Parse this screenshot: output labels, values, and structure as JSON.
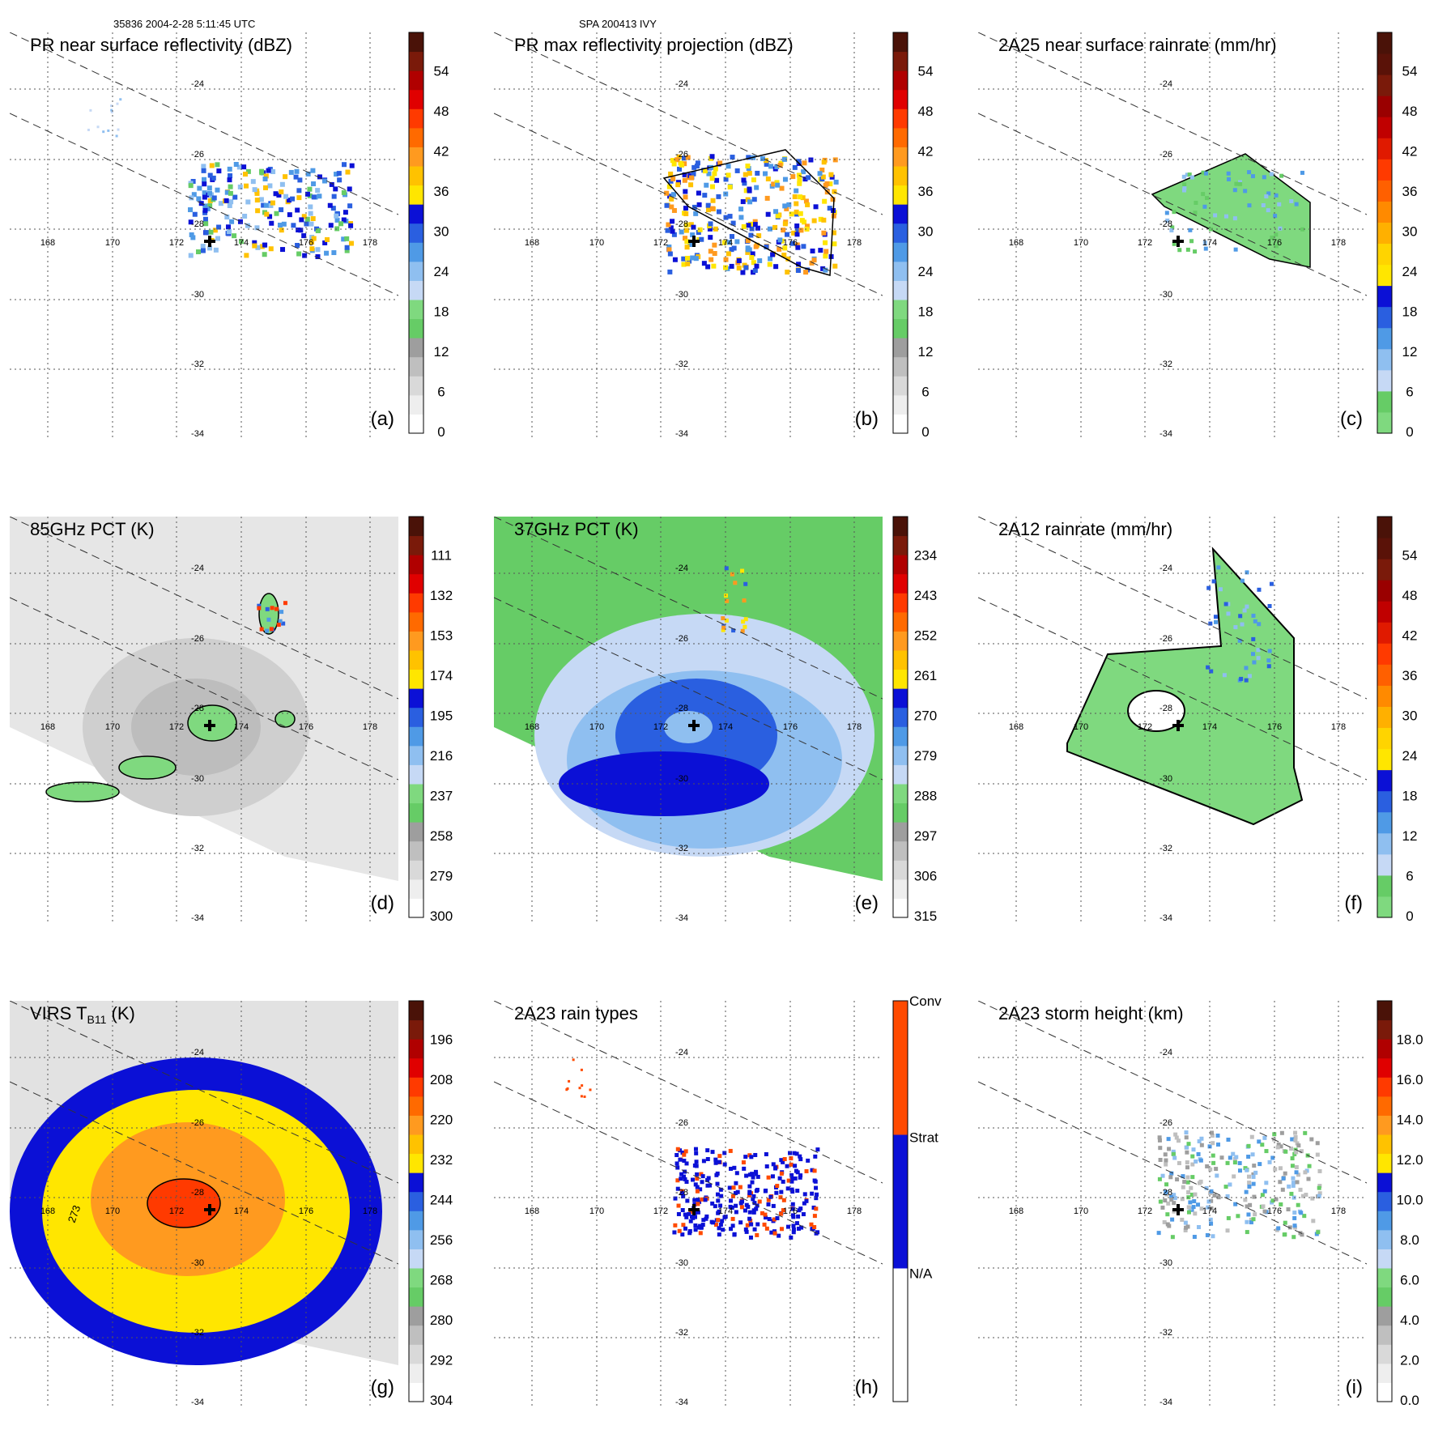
{
  "header": {
    "left": "35836 2004-2-28 5:11:45 UTC",
    "center": "SPA 200413 IVY"
  },
  "axes": {
    "lon_labels": [
      "168",
      "170",
      "172",
      "174",
      "176",
      "178"
    ],
    "lat_labels": [
      "-24",
      "-26",
      "-28",
      "-30",
      "-32",
      "-34"
    ]
  },
  "panels": [
    {
      "id": "a",
      "title": "PR near surface reflectivity (dBZ)",
      "letter": "(a)",
      "colorbar": {
        "labels": [
          "0",
          "6",
          "12",
          "18",
          "24",
          "30",
          "36",
          "42",
          "48",
          "54"
        ],
        "colors": [
          "#ffffff",
          "#eeeeee",
          "#d9d9d9",
          "#bfbfbf",
          "#9e9e9e",
          "#66cc66",
          "#7fd97f",
          "#c6d9f5",
          "#8fbff0",
          "#4f9ae6",
          "#2a5fe0",
          "#0b10d6",
          "#ffe600",
          "#ffc200",
          "#ff9a1f",
          "#ff6a00",
          "#ff3a00",
          "#e00000",
          "#b00000",
          "#7a1a0a",
          "#4a1208"
        ]
      }
    },
    {
      "id": "b",
      "title": "PR max reflectivity projection (dBZ)",
      "letter": "(b)",
      "colorbar": {
        "labels": [
          "0",
          "6",
          "12",
          "18",
          "24",
          "30",
          "36",
          "42",
          "48",
          "54"
        ],
        "colors": [
          "#ffffff",
          "#eeeeee",
          "#d9d9d9",
          "#bfbfbf",
          "#9e9e9e",
          "#66cc66",
          "#7fd97f",
          "#c6d9f5",
          "#8fbff0",
          "#4f9ae6",
          "#2a5fe0",
          "#0b10d6",
          "#ffe600",
          "#ffc200",
          "#ff9a1f",
          "#ff6a00",
          "#ff3a00",
          "#e00000",
          "#b00000",
          "#7a1a0a",
          "#4a1208"
        ]
      }
    },
    {
      "id": "c",
      "title": "2A25 near surface rainrate (mm/hr)",
      "letter": "(c)",
      "colorbar": {
        "labels": [
          "0",
          "6",
          "12",
          "18",
          "24",
          "30",
          "36",
          "42",
          "48",
          "54"
        ],
        "colors": [
          "#7fd97f",
          "#66cc66",
          "#c6d9f5",
          "#8fbff0",
          "#4f9ae6",
          "#2a5fe0",
          "#0b10d6",
          "#ffe600",
          "#ffd400",
          "#ffb000",
          "#ff8a00",
          "#ff6000",
          "#ff3a00",
          "#e01a00",
          "#c00000",
          "#9a0000",
          "#7a1a0a",
          "#5a1208",
          "#4a1208"
        ]
      }
    },
    {
      "id": "d",
      "title": "85GHz PCT (K)",
      "letter": "(d)",
      "colorbar": {
        "labels": [
          "300",
          "279",
          "258",
          "237",
          "216",
          "195",
          "174",
          "153",
          "132",
          "111"
        ],
        "colors": [
          "#ffffff",
          "#eeeeee",
          "#d9d9d9",
          "#bfbfbf",
          "#9e9e9e",
          "#66cc66",
          "#7fd97f",
          "#c6d9f5",
          "#8fbff0",
          "#4f9ae6",
          "#2a5fe0",
          "#0b10d6",
          "#ffe600",
          "#ffc200",
          "#ff9a1f",
          "#ff6a00",
          "#ff3a00",
          "#e00000",
          "#b00000",
          "#7a1a0a",
          "#4a1208"
        ]
      }
    },
    {
      "id": "e",
      "title": "37GHz PCT (K)",
      "letter": "(e)",
      "colorbar": {
        "labels": [
          "315",
          "306",
          "297",
          "288",
          "279",
          "270",
          "261",
          "252",
          "243",
          "234"
        ],
        "colors": [
          "#ffffff",
          "#eeeeee",
          "#d9d9d9",
          "#bfbfbf",
          "#9e9e9e",
          "#66cc66",
          "#7fd97f",
          "#c6d9f5",
          "#8fbff0",
          "#4f9ae6",
          "#2a5fe0",
          "#0b10d6",
          "#ffe600",
          "#ffc200",
          "#ff9a1f",
          "#ff6a00",
          "#ff3a00",
          "#e00000",
          "#b00000",
          "#7a1a0a",
          "#4a1208"
        ]
      }
    },
    {
      "id": "f",
      "title": "2A12 rainrate (mm/hr)",
      "letter": "(f)",
      "colorbar": {
        "labels": [
          "0",
          "6",
          "12",
          "18",
          "24",
          "30",
          "36",
          "42",
          "48",
          "54"
        ],
        "colors": [
          "#7fd97f",
          "#66cc66",
          "#c6d9f5",
          "#8fbff0",
          "#4f9ae6",
          "#2a5fe0",
          "#0b10d6",
          "#ffe600",
          "#ffd400",
          "#ffb000",
          "#ff8a00",
          "#ff6000",
          "#ff3a00",
          "#e01a00",
          "#c00000",
          "#9a0000",
          "#7a1a0a",
          "#5a1208",
          "#4a1208"
        ]
      }
    },
    {
      "id": "g",
      "title": "VIRS T",
      "title_sub": "B11",
      "title_after": " (K)",
      "letter": "(g)",
      "colorbar": {
        "labels": [
          "304",
          "292",
          "280",
          "268",
          "256",
          "244",
          "232",
          "220",
          "208",
          "196"
        ],
        "colors": [
          "#ffffff",
          "#eeeeee",
          "#d9d9d9",
          "#bfbfbf",
          "#9e9e9e",
          "#66cc66",
          "#7fd97f",
          "#c6d9f5",
          "#8fbff0",
          "#4f9ae6",
          "#2a5fe0",
          "#0b10d6",
          "#ffe600",
          "#ffc200",
          "#ff9a1f",
          "#ff6a00",
          "#ff3a00",
          "#e00000",
          "#b00000",
          "#7a1a0a",
          "#4a1208"
        ]
      }
    },
    {
      "id": "h",
      "title": "2A23 rain types",
      "letter": "(h)",
      "colorbar": {
        "labels": [
          "N/A",
          "Strat",
          "Conv"
        ],
        "type": "category",
        "colors": [
          "#ffffff",
          "#0b10d6",
          "#ff4a00"
        ]
      }
    },
    {
      "id": "i",
      "title": "2A23 storm height (km)",
      "letter": "(i)",
      "colorbar": {
        "labels": [
          "0.0",
          "2.0",
          "4.0",
          "6.0",
          "8.0",
          "10.0",
          "12.0",
          "14.0",
          "16.0",
          "18.0"
        ],
        "colors": [
          "#ffffff",
          "#eeeeee",
          "#d9d9d9",
          "#bfbfbf",
          "#9e9e9e",
          "#66cc66",
          "#7fd97f",
          "#c6d9f5",
          "#8fbff0",
          "#4f9ae6",
          "#2a5fe0",
          "#0b10d6",
          "#ffe600",
          "#ffc200",
          "#ff9a1f",
          "#ff6a00",
          "#ff3a00",
          "#e00000",
          "#b00000",
          "#7a1a0a",
          "#4a1208"
        ]
      }
    }
  ],
  "contour_label": "273"
}
